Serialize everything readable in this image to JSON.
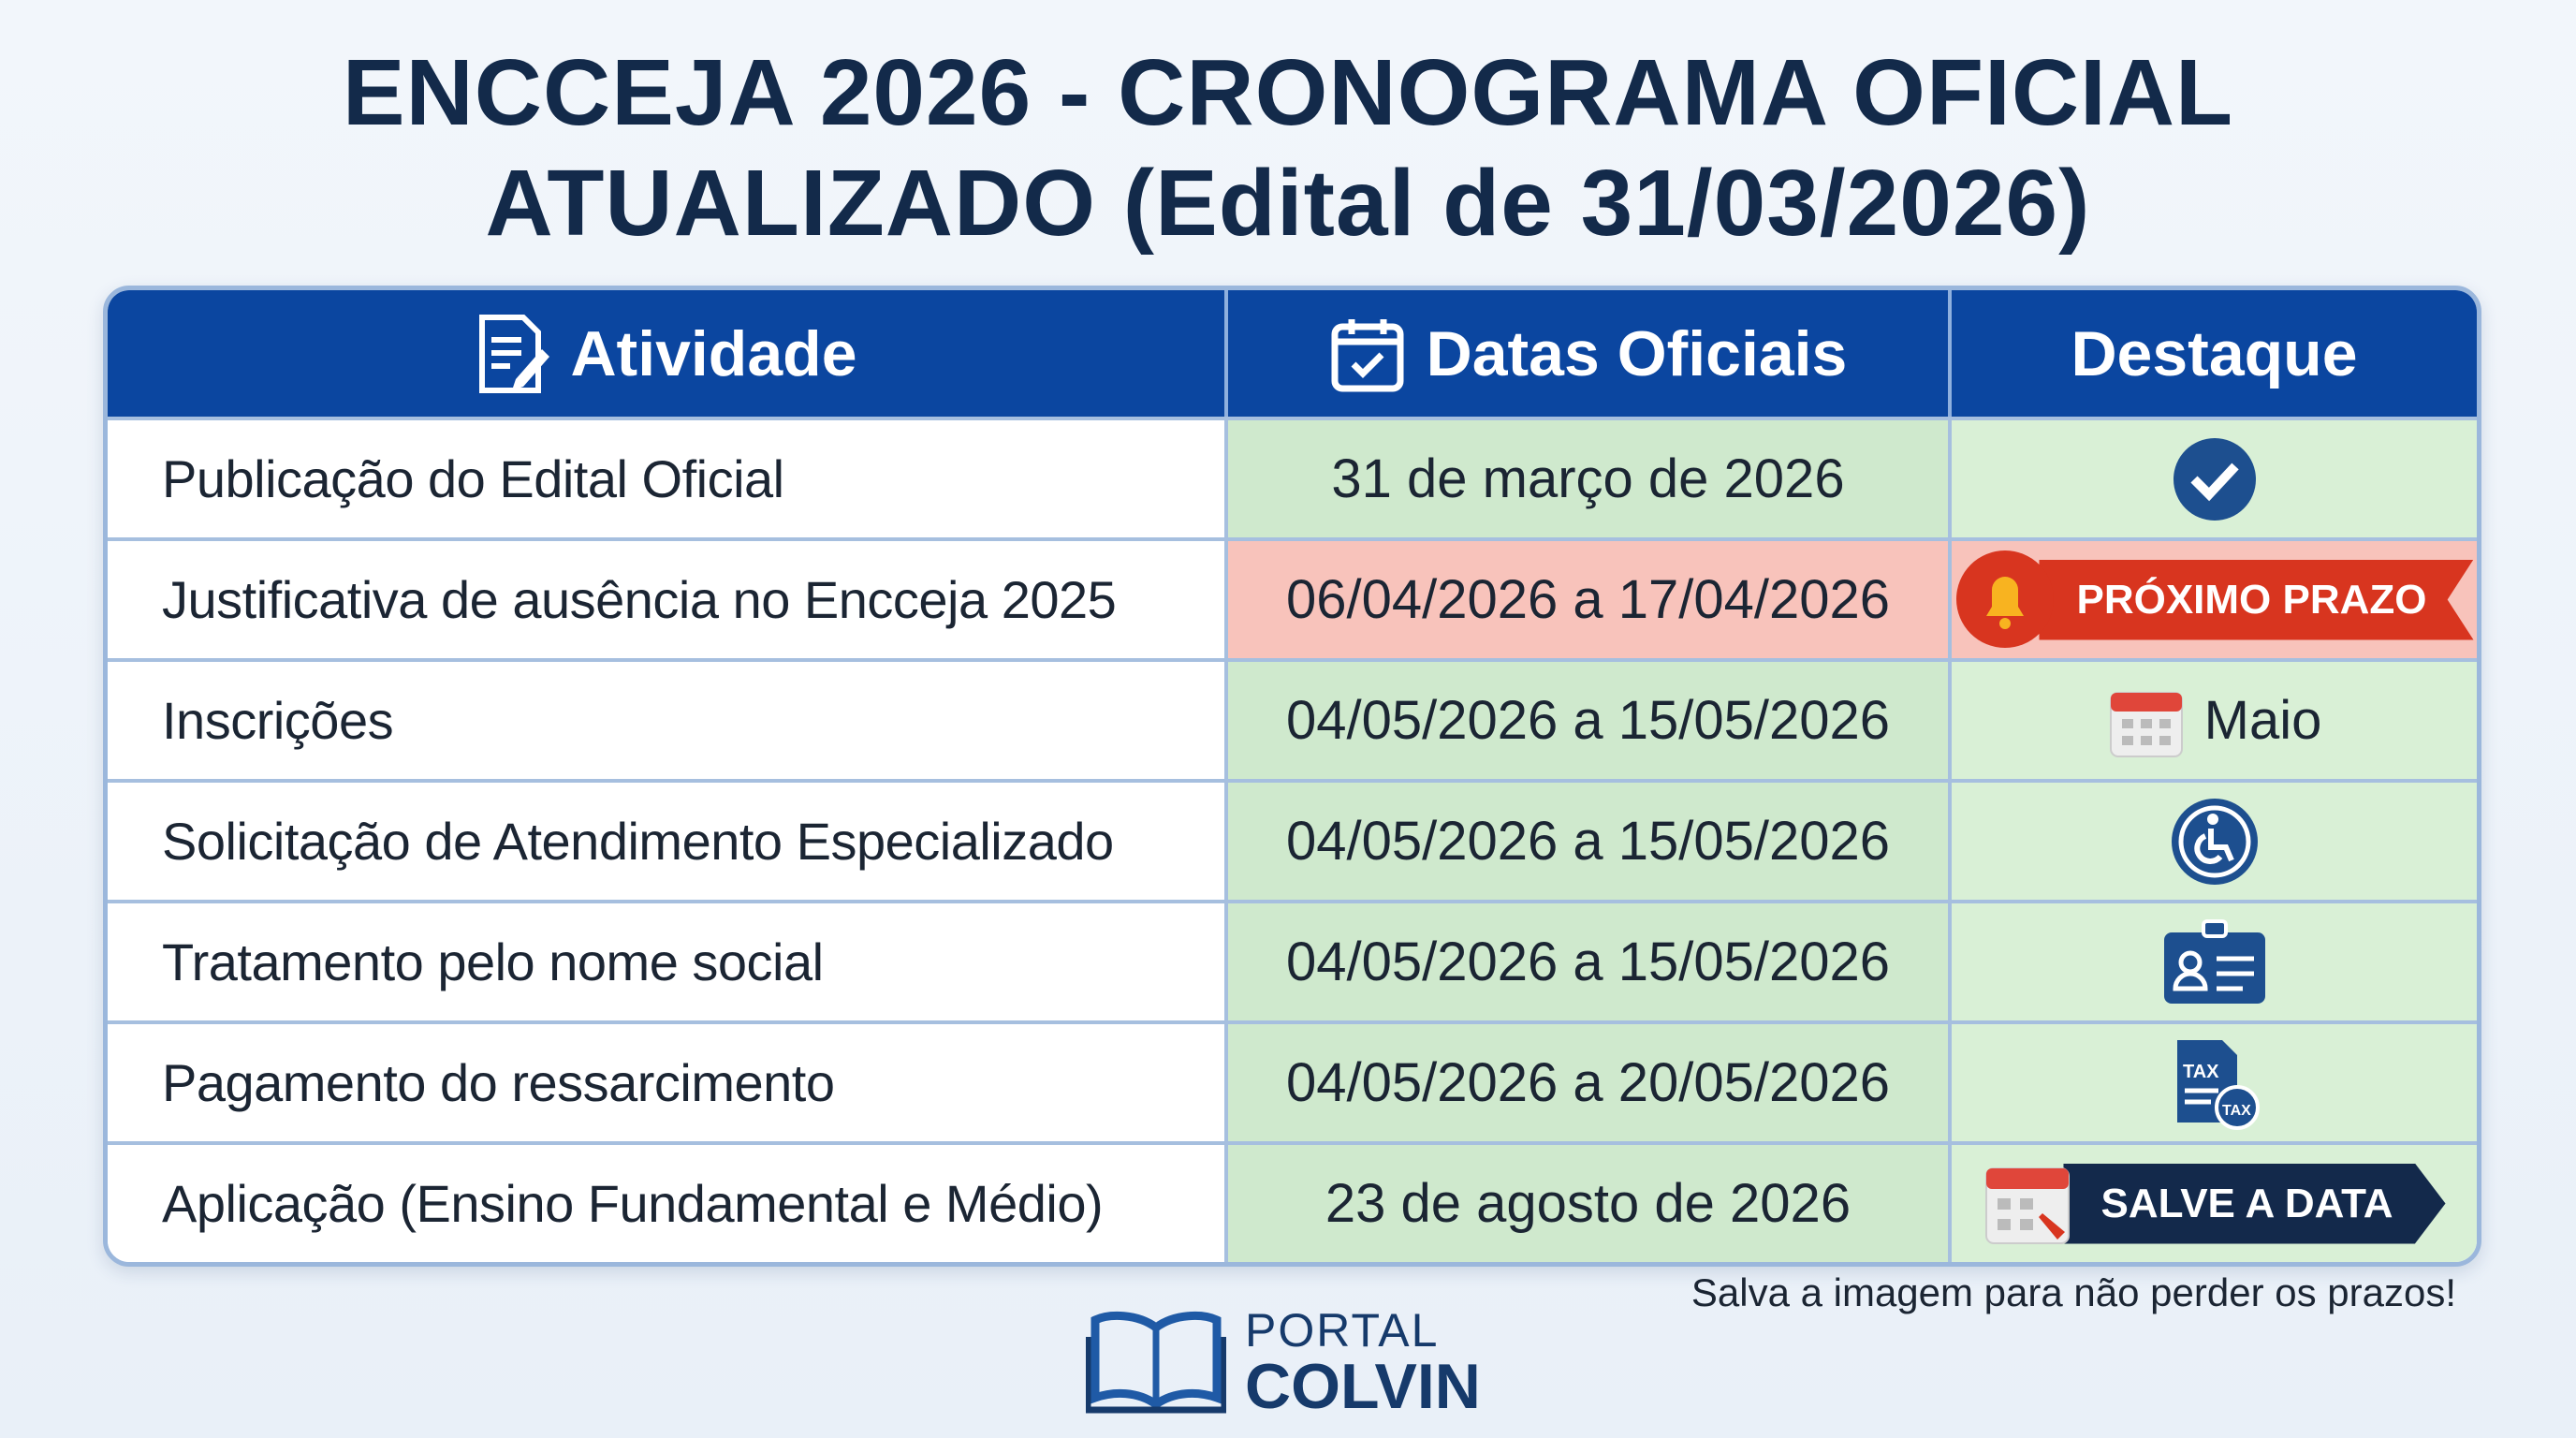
{
  "header": {
    "title_line1": "ENCCEJA 2026 - CRONOGRAMA OFICIAL",
    "title_line2": "ATUALIZADO (Edital de 31/03/2026)"
  },
  "table": {
    "columns": [
      "Atividade",
      "Datas Oficiais",
      "Destaque"
    ],
    "rows": [
      {
        "activity": "Publicação do Edital Oficial",
        "dates": "31 de março de 2026"
      },
      {
        "activity": "Justificativa de ausência no Encceja 2025",
        "dates": "06/04/2026 a 17/04/2026",
        "highlight": "PRÓXIMO PRAZO"
      },
      {
        "activity": "Inscrições",
        "dates": "04/05/2026 a 15/05/2026",
        "highlight": "Maio"
      },
      {
        "activity": "Solicitação de Atendimento Especializado",
        "dates": "04/05/2026 a 15/05/2026"
      },
      {
        "activity": "Tratamento pelo nome social",
        "dates": "04/05/2026 a 15/05/2026"
      },
      {
        "activity": "Pagamento do ressarcimento",
        "dates": "04/05/2026 a 20/05/2026"
      },
      {
        "activity": "Aplicação (Ensino Fundamental e Médio)",
        "dates": "23 de agosto de 2026",
        "highlight": "SALVE A DATA"
      }
    ]
  },
  "footer": {
    "note": "Salva a imagem para não perder os prazos!",
    "logo_line1": "PORTAL",
    "logo_line2": "COLVIN"
  }
}
